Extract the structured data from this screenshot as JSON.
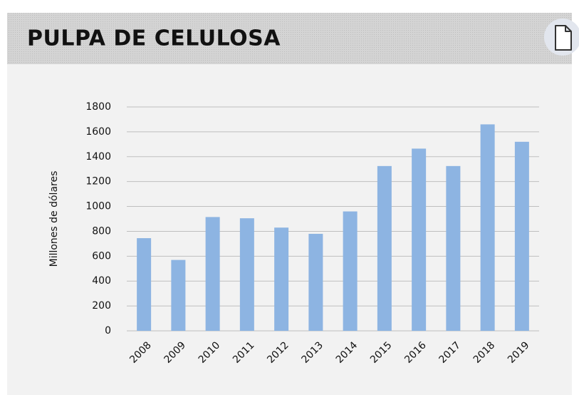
{
  "chart_data": {
    "type": "bar",
    "title": "PULPA DE CELULOSA",
    "y_label": "Millones de dólares",
    "categories": [
      "2008",
      "2009",
      "2010",
      "2011",
      "2012",
      "2013",
      "2014",
      "2015",
      "2016",
      "2017",
      "2018",
      "2019"
    ],
    "values": [
      745,
      570,
      915,
      905,
      830,
      780,
      960,
      1325,
      1465,
      1325,
      1660,
      1520
    ],
    "color": "#8db4e2",
    "ylim": [
      0,
      1800
    ],
    "yticks": [
      0,
      200,
      400,
      600,
      800,
      1000,
      1200,
      1400,
      1600,
      1800
    ],
    "grid": true
  }
}
